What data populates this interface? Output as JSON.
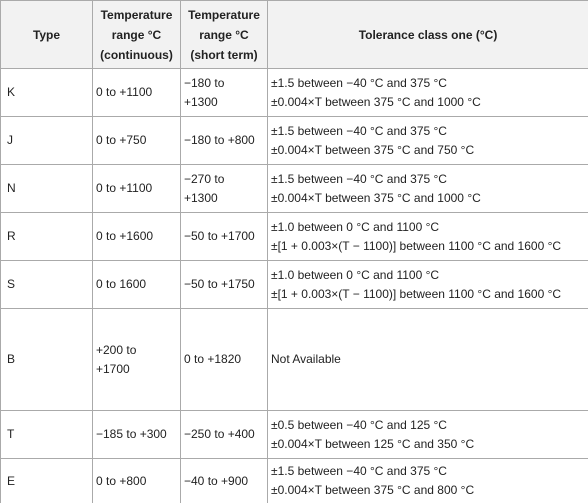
{
  "table": {
    "header": [
      [
        "Type"
      ],
      [
        "Temperature",
        "range °C",
        "(continuous)"
      ],
      [
        "Temperature",
        "range °C",
        "(short term)"
      ],
      [
        "Tolerance class one (°C)"
      ]
    ],
    "rows": [
      [
        [
          "K"
        ],
        [
          "0 to +1100"
        ],
        [
          "−180 to",
          "+1300"
        ],
        [
          "±1.5 between −40 °C and 375 °C",
          "±0.004×T between 375 °C and 1000 °C"
        ]
      ],
      [
        [
          "J"
        ],
        [
          "0 to +750"
        ],
        [
          "−180 to +800"
        ],
        [
          "±1.5 between −40 °C and 375 °C",
          "±0.004×T between 375 °C and 750 °C"
        ]
      ],
      [
        [
          "N"
        ],
        [
          "0 to +1100"
        ],
        [
          "−270 to",
          "+1300"
        ],
        [
          "±1.5 between −40 °C and 375 °C",
          "±0.004×T between 375 °C and 1000 °C"
        ]
      ],
      [
        [
          "R"
        ],
        [
          "0 to +1600"
        ],
        [
          "−50 to +1700"
        ],
        [
          "±1.0 between 0 °C and 1100 °C",
          "±[1 + 0.003×(T − 1100)] between 1100 °C and 1600 °C"
        ]
      ],
      [
        [
          "S"
        ],
        [
          "0 to 1600"
        ],
        [
          "−50 to +1750"
        ],
        [
          "±1.0 between 0 °C and 1100 °C",
          "±[1 + 0.003×(T − 1100)] between 1100 °C and 1600 °C"
        ]
      ],
      [
        [
          "B"
        ],
        [
          "+200 to",
          "+1700"
        ],
        [
          "0 to +1820"
        ],
        [
          "Not Available"
        ]
      ],
      [
        [
          "T"
        ],
        [
          "−185 to +300"
        ],
        [
          "−250 to +400"
        ],
        [
          "±0.5 between −40 °C and 125 °C",
          "±0.004×T between 125 °C and 350 °C"
        ]
      ],
      [
        [
          "E"
        ],
        [
          "0 to +800"
        ],
        [
          "−40 to +900"
        ],
        [
          "±1.5 between −40 °C and 375 °C",
          "±0.004×T between 375 °C and 800 °C"
        ]
      ]
    ]
  }
}
